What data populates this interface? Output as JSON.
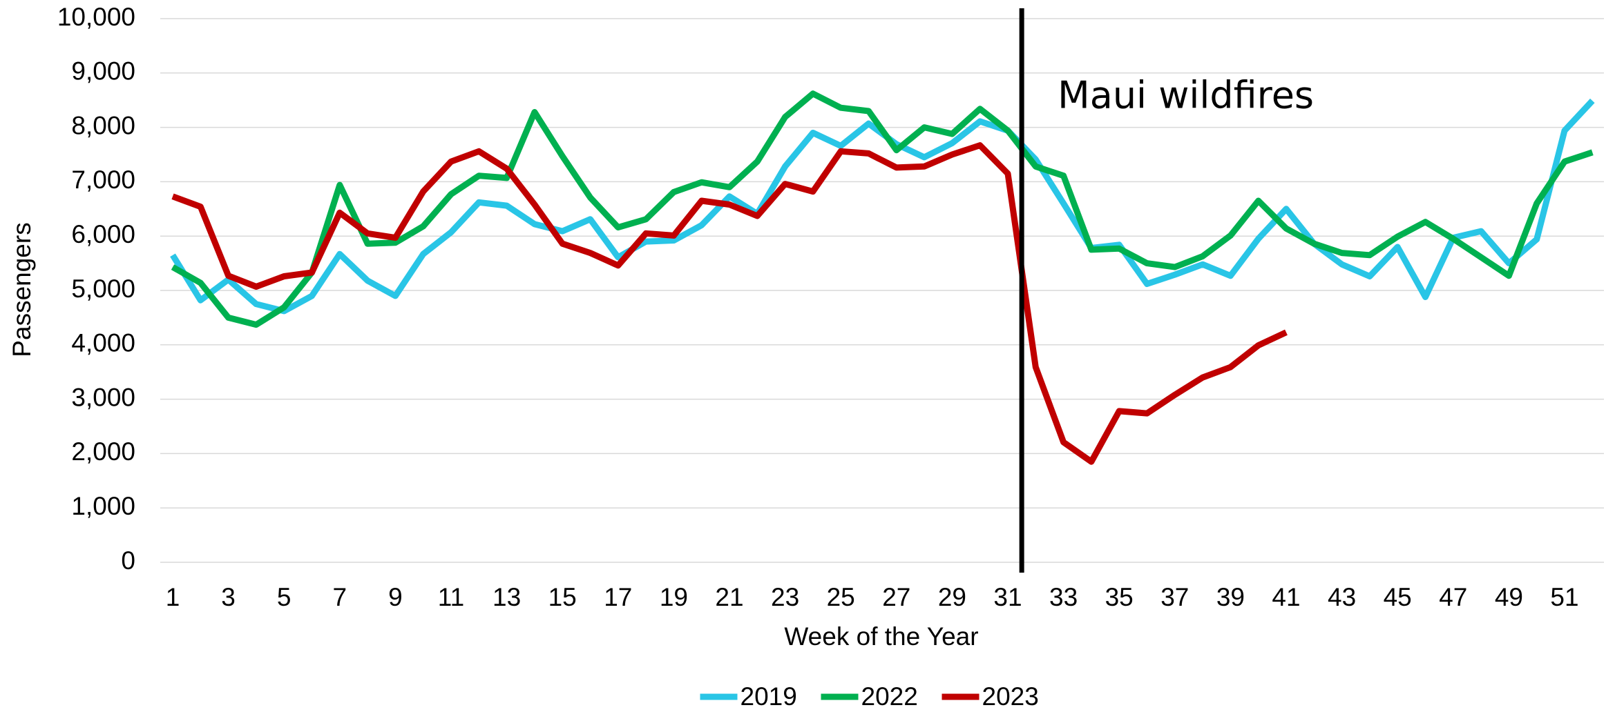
{
  "chart_data": {
    "type": "line",
    "x_label": "Week of the Year",
    "y_label": "Passengers",
    "categories": [
      1,
      null,
      3,
      null,
      5,
      null,
      7,
      null,
      9,
      null,
      11,
      null,
      13,
      null,
      15,
      null,
      17,
      null,
      19,
      null,
      21,
      null,
      23,
      null,
      25,
      null,
      27,
      null,
      29,
      null,
      31,
      null,
      33,
      null,
      35,
      null,
      37,
      null,
      39,
      null,
      41,
      null,
      43,
      null,
      45,
      null,
      47,
      null,
      49,
      null,
      51,
      null
    ],
    "series": [
      {
        "name": "2019",
        "color": "#29c5e6",
        "values": [
          5650,
          4820,
          5200,
          4750,
          4620,
          4900,
          5670,
          5180,
          4900,
          5670,
          6070,
          6620,
          6560,
          6220,
          6090,
          6310,
          5610,
          5900,
          5920,
          6200,
          6730,
          6410,
          7280,
          7900,
          7660,
          8070,
          7690,
          7450,
          7710,
          8110,
          7940,
          7410,
          6600,
          5780,
          5840,
          5120,
          5290,
          5480,
          5270,
          5950,
          6500,
          5860,
          5480,
          5260,
          5800,
          4880,
          5970,
          6090,
          5500,
          5940,
          7940,
          8490
        ]
      },
      {
        "name": "2022",
        "color": "#00b050",
        "values": [
          5430,
          5140,
          4500,
          4370,
          4690,
          5330,
          6940,
          5860,
          5880,
          6180,
          6770,
          7110,
          7070,
          8280,
          7470,
          6710,
          6160,
          6310,
          6810,
          6990,
          6900,
          7370,
          8190,
          8620,
          8360,
          8300,
          7580,
          8000,
          7880,
          8340,
          7940,
          7280,
          7110,
          5750,
          5770,
          5500,
          5430,
          5630,
          6010,
          6650,
          6140,
          5860,
          5690,
          5650,
          5990,
          6260,
          5950,
          5610,
          5270,
          6600,
          7370,
          7540
        ]
      },
      {
        "name": "2023",
        "color": "#c00000",
        "values": [
          6730,
          6540,
          5270,
          5070,
          5260,
          5330,
          6430,
          6050,
          5970,
          6820,
          7370,
          7560,
          7240,
          6580,
          5860,
          5690,
          5460,
          6050,
          6010,
          6650,
          6580,
          6370,
          6960,
          6820,
          7560,
          7520,
          7260,
          7280,
          7500,
          7670,
          7150,
          3590,
          2210,
          1850,
          2780,
          2740,
          3080,
          3400,
          3590,
          3990,
          4230,
          null,
          null,
          null,
          null,
          null,
          null,
          null,
          null,
          null,
          null,
          null
        ]
      }
    ],
    "ylim": [
      0,
      10000
    ],
    "yticks": [
      0,
      {
        "value": 1000,
        "label": "1,000"
      },
      {
        "value": 2000,
        "label": "2,000"
      },
      {
        "value": 3000,
        "label": "3,000"
      },
      {
        "value": 4000,
        "label": "4,000"
      },
      {
        "value": 5000,
        "label": "5,000"
      },
      {
        "value": 6000,
        "label": "6,000"
      },
      {
        "value": 7000,
        "label": "7,000"
      },
      {
        "value": 8000,
        "label": "8,000"
      },
      {
        "value": 9000,
        "label": "9,000"
      },
      {
        "value": 10000,
        "label": "10,000"
      }
    ],
    "grid": true,
    "legend": "bottom",
    "annotations": [
      {
        "text": "Maui wildfires",
        "x": 31.5
      }
    ]
  }
}
